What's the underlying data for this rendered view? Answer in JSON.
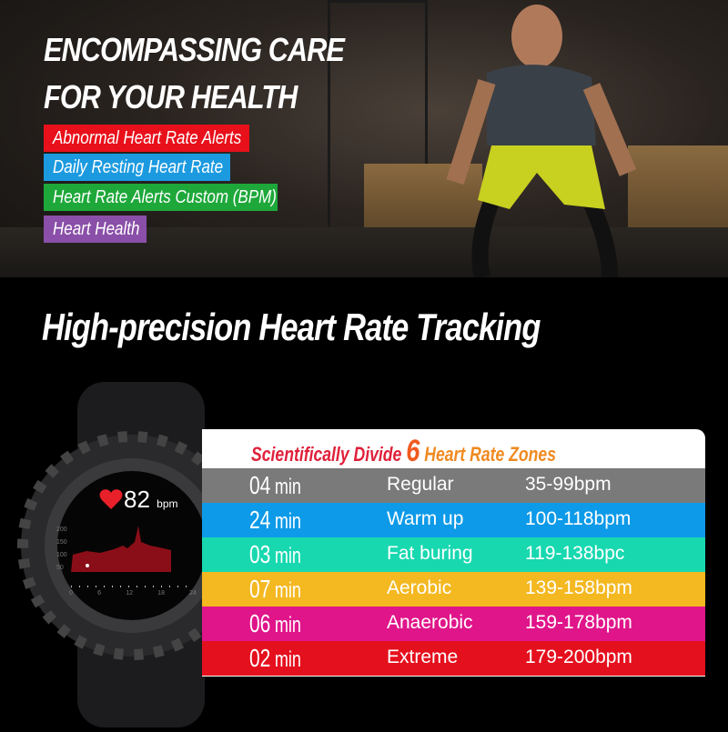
{
  "hero": {
    "headline_line1": "ENCOMPASSING CARE",
    "headline_line2": "FOR YOUR HEALTH",
    "features": [
      {
        "label": "Abnormal Heart Rate Alerts",
        "color": "#e8101a"
      },
      {
        "label": "Daily Resting Heart Rate",
        "color": "#1c9ae0"
      },
      {
        "label": "Heart Rate Alerts Custom (BPM)",
        "color": "#1ea83a"
      },
      {
        "label": "Heart Health",
        "color": "#8a4fa8"
      }
    ]
  },
  "section_title": "High-precision Heart Rate Tracking",
  "watch_screen": {
    "heart_rate": "82",
    "unit": "bpm",
    "y_ticks": [
      "200",
      "150",
      "100",
      "50"
    ],
    "x_ticks": [
      "0",
      "6",
      "12",
      "18",
      "24"
    ]
  },
  "zones": {
    "title_prefix": "Scientifically Divide",
    "title_number": "6",
    "title_suffix": "Heart Rate Zones",
    "rows": [
      {
        "minutes": "04",
        "unit": "min",
        "name": "Regular",
        "range": "35-99bpm",
        "color": "#7a7a7a"
      },
      {
        "minutes": "24",
        "unit": "min",
        "name": "Warm up",
        "range": "100-118bpm",
        "color": "#0d9ae8"
      },
      {
        "minutes": "03",
        "unit": "min",
        "name": "Fat buring",
        "range": "119-138bpc",
        "color": "#18d8b0"
      },
      {
        "minutes": "07",
        "unit": "min",
        "name": "Aerobic",
        "range": "139-158bpm",
        "color": "#f4b820"
      },
      {
        "minutes": "06",
        "unit": "min",
        "name": "Anaerobic",
        "range": "159-178bpm",
        "color": "#e0158a"
      },
      {
        "minutes": "02",
        "unit": "min",
        "name": "Extreme",
        "range": "179-200bpm",
        "color": "#e5101e"
      }
    ]
  }
}
